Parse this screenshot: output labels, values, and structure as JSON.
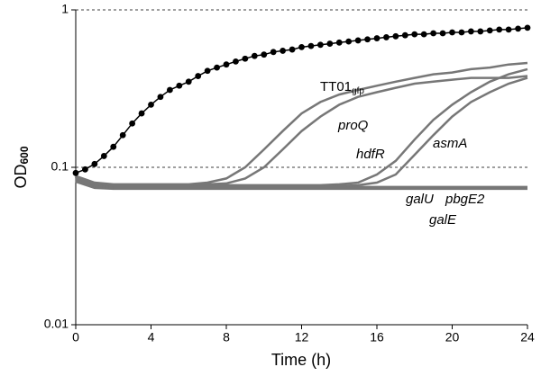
{
  "chart_data": {
    "type": "line",
    "x_label": "Time (h)",
    "y_label": "OD",
    "y_label_sub": "600",
    "xlim": [
      0,
      24
    ],
    "xticks": [
      0,
      4,
      8,
      12,
      16,
      20,
      24
    ],
    "ylim": [
      0.01,
      1
    ],
    "yticks": [
      0.01,
      0.1,
      1
    ],
    "log_y": true,
    "grid_dashed": [
      0.1,
      1
    ],
    "series": [
      {
        "color": "#000000",
        "marker": "dot",
        "x": [
          0,
          0.5,
          1,
          1.5,
          2,
          2.5,
          3,
          3.5,
          4,
          4.5,
          5,
          5.5,
          6,
          6.5,
          7,
          7.5,
          8,
          8.5,
          9,
          9.5,
          10,
          10.5,
          11,
          11.5,
          12,
          12.5,
          13,
          13.5,
          14,
          14.5,
          15,
          15.5,
          16,
          16.5,
          17,
          17.5,
          18,
          18.5,
          19,
          19.5,
          20,
          20.5,
          21,
          21.5,
          22,
          22.5,
          23,
          23.5,
          24
        ],
        "values": [
          0.092,
          0.097,
          0.105,
          0.118,
          0.135,
          0.16,
          0.19,
          0.22,
          0.25,
          0.28,
          0.31,
          0.33,
          0.35,
          0.38,
          0.41,
          0.43,
          0.45,
          0.47,
          0.49,
          0.51,
          0.52,
          0.54,
          0.55,
          0.56,
          0.58,
          0.59,
          0.6,
          0.61,
          0.62,
          0.63,
          0.64,
          0.65,
          0.66,
          0.67,
          0.68,
          0.69,
          0.7,
          0.7,
          0.71,
          0.71,
          0.72,
          0.72,
          0.73,
          0.73,
          0.74,
          0.75,
          0.75,
          0.76,
          0.77
        ]
      },
      {
        "name": "TT01",
        "name_sub": "gfp",
        "color": "#777777",
        "x": [
          0,
          1,
          2,
          3,
          4,
          5,
          6,
          7,
          8,
          9,
          10,
          11,
          12,
          13,
          14,
          15,
          16,
          17,
          18,
          19,
          20,
          21,
          22,
          23,
          24
        ],
        "values": [
          0.088,
          0.08,
          0.078,
          0.078,
          0.078,
          0.078,
          0.078,
          0.08,
          0.085,
          0.1,
          0.13,
          0.17,
          0.22,
          0.26,
          0.29,
          0.31,
          0.33,
          0.35,
          0.37,
          0.39,
          0.4,
          0.42,
          0.43,
          0.45,
          0.46
        ]
      },
      {
        "name": "proQ",
        "color": "#777777",
        "x": [
          0,
          1,
          2,
          3,
          4,
          5,
          6,
          7,
          8,
          9,
          10,
          11,
          12,
          13,
          14,
          15,
          16,
          17,
          18,
          19,
          20,
          21,
          22,
          23,
          24
        ],
        "values": [
          0.086,
          0.079,
          0.077,
          0.077,
          0.077,
          0.077,
          0.077,
          0.078,
          0.079,
          0.085,
          0.1,
          0.13,
          0.17,
          0.21,
          0.25,
          0.28,
          0.3,
          0.32,
          0.34,
          0.35,
          0.36,
          0.37,
          0.37,
          0.37,
          0.38
        ]
      },
      {
        "name": "hdfR",
        "color": "#777777",
        "x": [
          0,
          1,
          2,
          3,
          4,
          5,
          6,
          7,
          8,
          9,
          10,
          11,
          12,
          13,
          14,
          15,
          16,
          17,
          18,
          19,
          20,
          21,
          22,
          23,
          24
        ],
        "values": [
          0.085,
          0.078,
          0.077,
          0.077,
          0.077,
          0.077,
          0.077,
          0.077,
          0.077,
          0.077,
          0.077,
          0.077,
          0.077,
          0.077,
          0.078,
          0.08,
          0.09,
          0.11,
          0.15,
          0.2,
          0.25,
          0.3,
          0.35,
          0.39,
          0.42
        ]
      },
      {
        "name": "asmA",
        "color": "#777777",
        "x": [
          0,
          1,
          2,
          3,
          4,
          5,
          6,
          7,
          8,
          9,
          10,
          11,
          12,
          13,
          14,
          15,
          16,
          17,
          18,
          19,
          20,
          21,
          22,
          23,
          24
        ],
        "values": [
          0.084,
          0.077,
          0.076,
          0.076,
          0.076,
          0.076,
          0.076,
          0.076,
          0.076,
          0.076,
          0.076,
          0.076,
          0.076,
          0.076,
          0.076,
          0.077,
          0.08,
          0.09,
          0.12,
          0.16,
          0.21,
          0.26,
          0.3,
          0.34,
          0.37
        ]
      },
      {
        "name": "galU",
        "color": "#777777",
        "x": [
          0,
          1,
          2,
          3,
          4,
          5,
          6,
          7,
          8,
          9,
          10,
          11,
          12,
          13,
          14,
          15,
          16,
          17,
          18,
          19,
          20,
          21,
          22,
          23,
          24
        ],
        "values": [
          0.083,
          0.076,
          0.075,
          0.075,
          0.075,
          0.075,
          0.075,
          0.075,
          0.075,
          0.075,
          0.075,
          0.075,
          0.075,
          0.075,
          0.075,
          0.075,
          0.075,
          0.075,
          0.075,
          0.075,
          0.075,
          0.075,
          0.075,
          0.075,
          0.075
        ]
      },
      {
        "name": "pbgE2",
        "color": "#777777",
        "x": [
          0,
          1,
          2,
          3,
          4,
          5,
          6,
          7,
          8,
          9,
          10,
          11,
          12,
          13,
          14,
          15,
          16,
          17,
          18,
          19,
          20,
          21,
          22,
          23,
          24
        ],
        "values": [
          0.082,
          0.075,
          0.074,
          0.074,
          0.074,
          0.074,
          0.074,
          0.074,
          0.074,
          0.074,
          0.074,
          0.074,
          0.074,
          0.074,
          0.074,
          0.074,
          0.074,
          0.074,
          0.074,
          0.074,
          0.074,
          0.074,
          0.074,
          0.074,
          0.074
        ]
      },
      {
        "name": "galE",
        "color": "#777777",
        "x": [
          0,
          1,
          2,
          3,
          4,
          5,
          6,
          7,
          8,
          9,
          10,
          11,
          12,
          13,
          14,
          15,
          16,
          17,
          18,
          19,
          20,
          21,
          22,
          23,
          24
        ],
        "values": [
          0.081,
          0.074,
          0.073,
          0.073,
          0.073,
          0.073,
          0.073,
          0.073,
          0.073,
          0.073,
          0.073,
          0.073,
          0.073,
          0.073,
          0.073,
          0.073,
          0.073,
          0.073,
          0.073,
          0.073,
          0.073,
          0.073,
          0.073,
          0.073,
          0.073
        ]
      }
    ]
  }
}
